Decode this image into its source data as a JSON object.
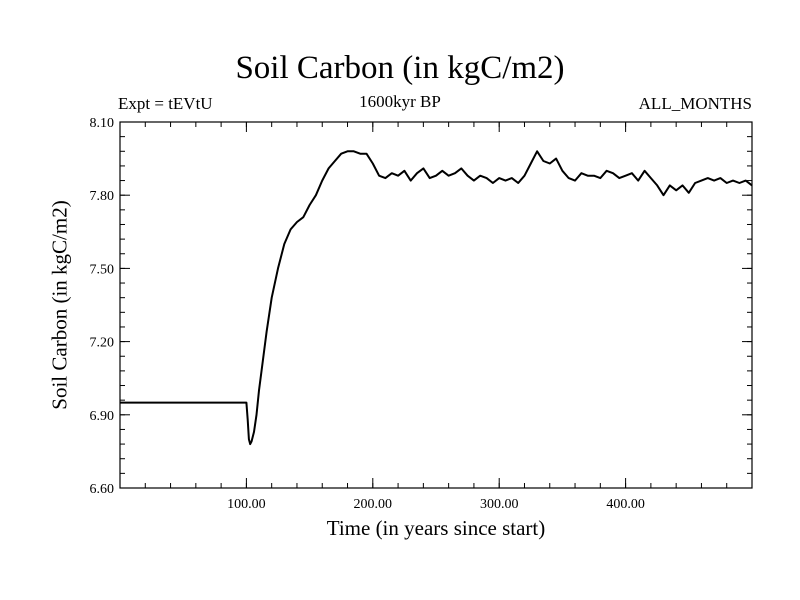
{
  "chart_data": {
    "type": "line",
    "title": "Soil Carbon (in kgC/m2)",
    "subtitle": "1600kyr BP",
    "left_annotation": "Expt = tEVtU",
    "right_annotation": "ALL_MONTHS",
    "xlabel": "Time (in years since start)",
    "ylabel": "Soil Carbon (in kgC/m2)",
    "xlim": [
      0,
      500
    ],
    "ylim": [
      6.6,
      8.1
    ],
    "x_ticks": [
      100,
      200,
      300,
      400
    ],
    "x_tick_labels": [
      "100.00",
      "200.00",
      "300.00",
      "400.00"
    ],
    "y_ticks": [
      6.6,
      6.9,
      7.2,
      7.5,
      7.8,
      8.1
    ],
    "y_tick_labels": [
      "6.60",
      "6.90",
      "7.20",
      "7.50",
      "7.80",
      "8.10"
    ],
    "series": [
      {
        "name": "Soil Carbon",
        "color": "#000000",
        "x": [
          0,
          100,
          101,
          102,
          103,
          104,
          106,
          108,
          110,
          113,
          116,
          120,
          125,
          130,
          135,
          140,
          145,
          150,
          155,
          160,
          165,
          170,
          175,
          180,
          185,
          190,
          195,
          200,
          205,
          210,
          215,
          220,
          225,
          230,
          235,
          240,
          245,
          250,
          255,
          260,
          265,
          270,
          275,
          280,
          285,
          290,
          295,
          300,
          305,
          310,
          315,
          320,
          325,
          330,
          335,
          340,
          345,
          350,
          355,
          360,
          365,
          370,
          375,
          380,
          385,
          390,
          395,
          400,
          405,
          410,
          415,
          420,
          425,
          430,
          435,
          440,
          445,
          450,
          455,
          460,
          465,
          470,
          475,
          480,
          485,
          490,
          495,
          500
        ],
        "values": [
          6.95,
          6.95,
          6.88,
          6.8,
          6.78,
          6.79,
          6.83,
          6.9,
          7.0,
          7.12,
          7.24,
          7.38,
          7.5,
          7.6,
          7.66,
          7.69,
          7.71,
          7.76,
          7.8,
          7.86,
          7.91,
          7.94,
          7.97,
          7.98,
          7.98,
          7.97,
          7.97,
          7.93,
          7.88,
          7.87,
          7.89,
          7.88,
          7.9,
          7.86,
          7.89,
          7.91,
          7.87,
          7.88,
          7.9,
          7.88,
          7.89,
          7.91,
          7.88,
          7.86,
          7.88,
          7.87,
          7.85,
          7.87,
          7.86,
          7.87,
          7.85,
          7.88,
          7.93,
          7.98,
          7.94,
          7.93,
          7.95,
          7.9,
          7.87,
          7.86,
          7.89,
          7.88,
          7.88,
          7.87,
          7.9,
          7.89,
          7.87,
          7.88,
          7.89,
          7.86,
          7.9,
          7.87,
          7.84,
          7.8,
          7.84,
          7.82,
          7.84,
          7.81,
          7.85,
          7.86,
          7.87,
          7.86,
          7.87,
          7.85,
          7.86,
          7.85,
          7.86,
          7.84
        ]
      }
    ]
  }
}
